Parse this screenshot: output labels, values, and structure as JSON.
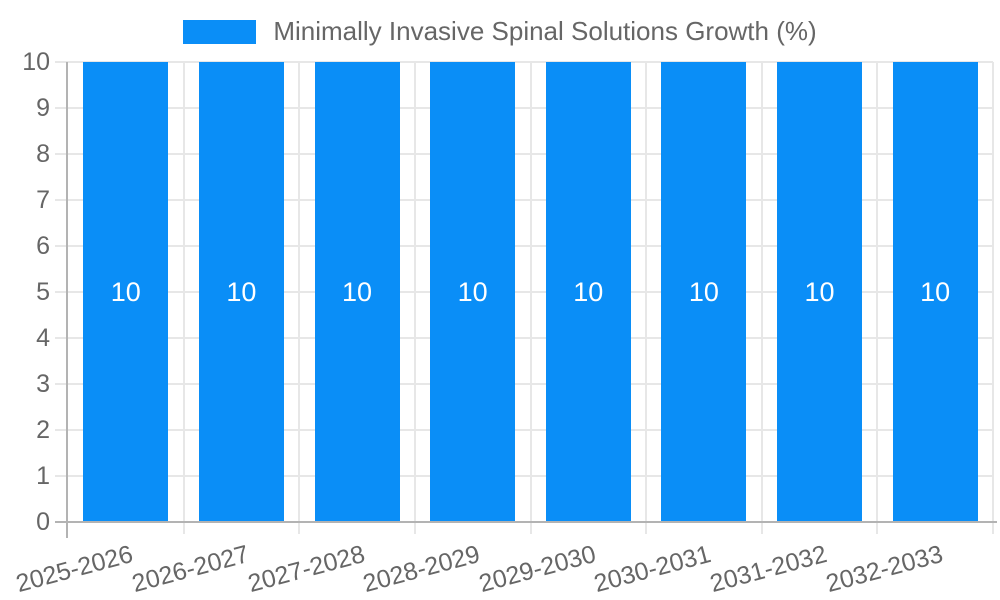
{
  "chart_data": {
    "type": "bar",
    "title": "Minimally Invasive Spinal Solutions Growth (%)",
    "categories": [
      "2025-2026",
      "2026-2027",
      "2027-2028",
      "2028-2029",
      "2029-2030",
      "2030-2031",
      "2031-2032",
      "2032-2033"
    ],
    "values": [
      10,
      10,
      10,
      10,
      10,
      10,
      10,
      10
    ],
    "series_name": "Minimally Invasive Spinal Solutions Growth (%)",
    "xlabel": "",
    "ylabel": "",
    "ylim": [
      0,
      10
    ],
    "yticks": [
      0,
      1,
      2,
      3,
      4,
      5,
      6,
      7,
      8,
      9,
      10
    ],
    "grid": true,
    "legend_position": "top-center",
    "bar_value_labels_shown": true,
    "colors": {
      "bar": "#0A8EF7",
      "grid": "#E7E7E7",
      "axis": "#B3B3B3",
      "tick_text": "#666666",
      "legend_text": "#666666",
      "value_text": "#FFFFFF",
      "background": "#FFFFFF"
    }
  }
}
